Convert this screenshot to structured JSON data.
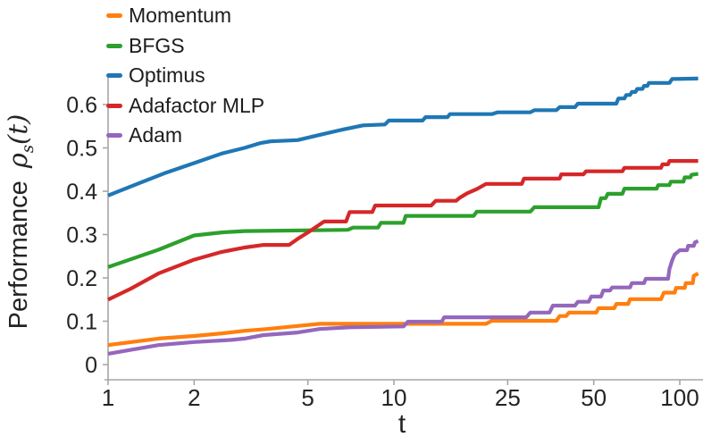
{
  "figure": {
    "background": "#ffffff",
    "text_color": "#242424",
    "axis_color": "#a6a6a6"
  },
  "chart_data": {
    "type": "line",
    "title": "",
    "xlabel": "t",
    "ylabel": {
      "prefix": "Performance",
      "math_rho": "ρ",
      "math_sub": "s",
      "math_suffix": "(t)"
    },
    "x_scale": "log",
    "xlim": [
      1,
      120
    ],
    "ylim": [
      -0.035,
      0.668
    ],
    "x_ticks": [
      "1",
      "2",
      "5",
      "10",
      "25",
      "50",
      "100"
    ],
    "x_tick_values": [
      1,
      2,
      5,
      10,
      25,
      50,
      100
    ],
    "y_ticks": [
      "0",
      "0.1",
      "0.2",
      "0.3",
      "0.4",
      "0.5",
      "0.6"
    ],
    "y_tick_values": [
      0,
      0.1,
      0.2,
      0.3,
      0.4,
      0.5,
      0.6
    ],
    "grid": false,
    "legend_position": "upper-left",
    "series": [
      {
        "name": "Momentum",
        "color": "#ff7f0e",
        "points": [
          [
            1,
            0.045
          ],
          [
            1.5,
            0.06
          ],
          [
            2,
            0.066
          ],
          [
            2.5,
            0.072
          ],
          [
            3,
            0.078
          ],
          [
            3.6,
            0.082
          ],
          [
            4.6,
            0.089
          ],
          [
            5.5,
            0.094
          ],
          [
            21,
            0.094
          ],
          [
            22,
            0.101
          ],
          [
            37,
            0.101
          ],
          [
            38,
            0.112
          ],
          [
            40,
            0.112
          ],
          [
            41,
            0.12
          ],
          [
            51,
            0.12
          ],
          [
            52,
            0.13
          ],
          [
            59,
            0.13
          ],
          [
            60,
            0.14
          ],
          [
            66,
            0.14
          ],
          [
            67,
            0.151
          ],
          [
            86,
            0.151
          ],
          [
            88,
            0.166
          ],
          [
            96,
            0.166
          ],
          [
            97,
            0.177
          ],
          [
            104,
            0.177
          ],
          [
            105,
            0.188
          ],
          [
            111,
            0.188
          ],
          [
            112,
            0.205
          ],
          [
            116,
            0.21
          ]
        ]
      },
      {
        "name": "BFGS",
        "color": "#2ca02c",
        "points": [
          [
            1,
            0.225
          ],
          [
            1.5,
            0.265
          ],
          [
            2,
            0.298
          ],
          [
            2.5,
            0.305
          ],
          [
            3,
            0.308
          ],
          [
            6.9,
            0.311
          ],
          [
            7.2,
            0.316
          ],
          [
            8.8,
            0.316
          ],
          [
            9,
            0.327
          ],
          [
            10.8,
            0.327
          ],
          [
            11,
            0.343
          ],
          [
            19,
            0.343
          ],
          [
            19.5,
            0.353
          ],
          [
            30,
            0.353
          ],
          [
            31,
            0.363
          ],
          [
            52,
            0.363
          ],
          [
            53,
            0.384
          ],
          [
            55,
            0.384
          ],
          [
            56,
            0.394
          ],
          [
            63,
            0.394
          ],
          [
            64,
            0.406
          ],
          [
            83,
            0.406
          ],
          [
            84,
            0.414
          ],
          [
            92,
            0.414
          ],
          [
            93,
            0.422
          ],
          [
            103,
            0.422
          ],
          [
            104,
            0.432
          ],
          [
            109,
            0.432
          ],
          [
            110,
            0.438
          ],
          [
            116,
            0.44
          ]
        ]
      },
      {
        "name": "Optimus",
        "color": "#1f77b4",
        "points": [
          [
            1,
            0.39
          ],
          [
            1.3,
            0.42
          ],
          [
            1.6,
            0.443
          ],
          [
            2,
            0.465
          ],
          [
            2.5,
            0.487
          ],
          [
            3,
            0.5
          ],
          [
            3.4,
            0.511
          ],
          [
            3.7,
            0.515
          ],
          [
            4.6,
            0.518
          ],
          [
            5.5,
            0.53
          ],
          [
            6.6,
            0.542
          ],
          [
            7.8,
            0.552
          ],
          [
            9.3,
            0.554
          ],
          [
            9.6,
            0.563
          ],
          [
            12.6,
            0.563
          ],
          [
            12.9,
            0.571
          ],
          [
            15.4,
            0.571
          ],
          [
            15.7,
            0.578
          ],
          [
            22,
            0.578
          ],
          [
            23,
            0.582
          ],
          [
            30,
            0.582
          ],
          [
            31,
            0.587
          ],
          [
            37,
            0.587
          ],
          [
            38,
            0.594
          ],
          [
            43,
            0.594
          ],
          [
            44,
            0.602
          ],
          [
            60,
            0.602
          ],
          [
            61,
            0.614
          ],
          [
            64,
            0.614
          ],
          [
            65,
            0.622
          ],
          [
            67,
            0.622
          ],
          [
            68,
            0.629
          ],
          [
            70,
            0.629
          ],
          [
            71,
            0.636
          ],
          [
            74,
            0.636
          ],
          [
            75,
            0.643
          ],
          [
            77,
            0.643
          ],
          [
            78,
            0.65
          ],
          [
            92,
            0.65
          ],
          [
            94,
            0.659
          ],
          [
            116,
            0.66
          ]
        ]
      },
      {
        "name": "Adafactor MLP",
        "color": "#d62728",
        "points": [
          [
            1,
            0.15
          ],
          [
            1.2,
            0.175
          ],
          [
            1.5,
            0.21
          ],
          [
            2,
            0.242
          ],
          [
            2.5,
            0.26
          ],
          [
            3,
            0.27
          ],
          [
            3.5,
            0.276
          ],
          [
            4.3,
            0.276
          ],
          [
            4.6,
            0.29
          ],
          [
            5,
            0.305
          ],
          [
            5.7,
            0.33
          ],
          [
            6.8,
            0.33
          ],
          [
            7,
            0.352
          ],
          [
            8.4,
            0.352
          ],
          [
            8.6,
            0.367
          ],
          [
            13.5,
            0.367
          ],
          [
            14,
            0.378
          ],
          [
            16.5,
            0.378
          ],
          [
            17,
            0.385
          ],
          [
            18,
            0.395
          ],
          [
            19.5,
            0.405
          ],
          [
            21,
            0.417
          ],
          [
            28,
            0.417
          ],
          [
            28.5,
            0.429
          ],
          [
            38,
            0.429
          ],
          [
            38.5,
            0.439
          ],
          [
            46,
            0.439
          ],
          [
            47,
            0.446
          ],
          [
            63,
            0.446
          ],
          [
            64,
            0.454
          ],
          [
            86,
            0.454
          ],
          [
            87,
            0.462
          ],
          [
            91,
            0.462
          ],
          [
            92,
            0.47
          ],
          [
            116,
            0.47
          ]
        ]
      },
      {
        "name": "Adam",
        "color": "#9467bd",
        "points": [
          [
            1,
            0.025
          ],
          [
            1.5,
            0.045
          ],
          [
            2,
            0.052
          ],
          [
            2.7,
            0.057
          ],
          [
            3,
            0.06
          ],
          [
            3.5,
            0.068
          ],
          [
            4.6,
            0.074
          ],
          [
            5.5,
            0.082
          ],
          [
            7,
            0.086
          ],
          [
            10.8,
            0.088
          ],
          [
            11.2,
            0.099
          ],
          [
            14.7,
            0.099
          ],
          [
            15,
            0.109
          ],
          [
            29,
            0.109
          ],
          [
            30,
            0.12
          ],
          [
            35,
            0.12
          ],
          [
            36,
            0.136
          ],
          [
            43,
            0.136
          ],
          [
            44,
            0.145
          ],
          [
            48,
            0.145
          ],
          [
            49,
            0.157
          ],
          [
            53,
            0.157
          ],
          [
            54,
            0.171
          ],
          [
            57,
            0.171
          ],
          [
            58,
            0.178
          ],
          [
            67,
            0.178
          ],
          [
            68,
            0.188
          ],
          [
            75,
            0.188
          ],
          [
            76,
            0.198
          ],
          [
            91,
            0.198
          ],
          [
            92,
            0.22
          ],
          [
            94,
            0.24
          ],
          [
            96,
            0.254
          ],
          [
            100,
            0.264
          ],
          [
            106,
            0.264
          ],
          [
            107,
            0.274
          ],
          [
            112,
            0.274
          ],
          [
            113,
            0.282
          ],
          [
            116,
            0.285
          ]
        ]
      }
    ]
  }
}
